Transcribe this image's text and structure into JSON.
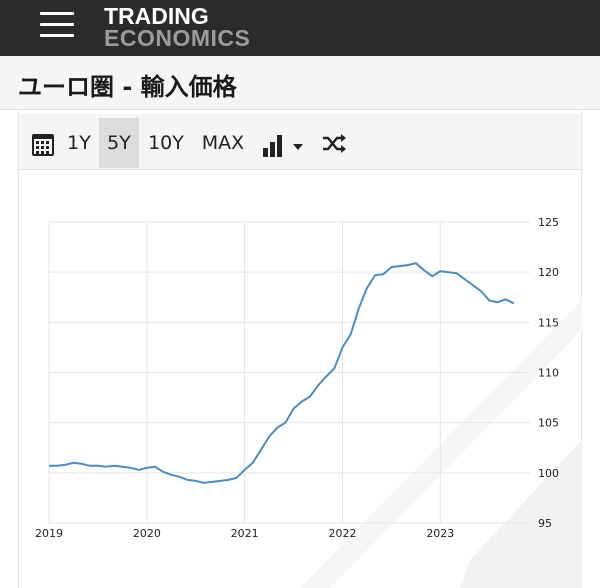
{
  "header": {
    "logo_line1": "TRADING",
    "logo_line2": "ECONOMICS",
    "menu_icon": "hamburger-icon",
    "bg_color": "#2b2b2b"
  },
  "page": {
    "title": "ユーロ圏 - 輸入価格"
  },
  "toolbar": {
    "calendar_icon": "calendar-icon",
    "ranges": [
      "1Y",
      "5Y",
      "10Y",
      "MAX"
    ],
    "selected_range": "5Y",
    "chart_type_icon": "bar-chart-icon",
    "dropdown_icon": "caret-down-icon",
    "compare_icon": "shuffle-icon"
  },
  "chart_data": {
    "type": "line",
    "title": "",
    "xlabel": "",
    "ylabel": "",
    "color": "#4a8cc4",
    "x_ticks": [
      "2019",
      "2020",
      "2021",
      "2022",
      "2023"
    ],
    "y_ticks": [
      "125",
      "120",
      "115",
      "110",
      "105",
      "100",
      "95"
    ],
    "ylim": [
      95,
      125
    ],
    "xlim": [
      "2019-01",
      "2023-12"
    ],
    "y_axis_position": "right",
    "grid": true,
    "x": [
      "2019-01",
      "2019-02",
      "2019-03",
      "2019-04",
      "2019-05",
      "2019-06",
      "2019-07",
      "2019-08",
      "2019-09",
      "2019-10",
      "2019-11",
      "2019-12",
      "2020-01",
      "2020-02",
      "2020-03",
      "2020-04",
      "2020-05",
      "2020-06",
      "2020-07",
      "2020-08",
      "2020-09",
      "2020-10",
      "2020-11",
      "2020-12",
      "2021-01",
      "2021-02",
      "2021-03",
      "2021-04",
      "2021-05",
      "2021-06",
      "2021-07",
      "2021-08",
      "2021-09",
      "2021-10",
      "2021-11",
      "2021-12",
      "2022-01",
      "2022-02",
      "2022-03",
      "2022-04",
      "2022-05",
      "2022-06",
      "2022-07",
      "2022-08",
      "2022-09",
      "2022-10",
      "2022-11",
      "2022-12",
      "2023-01",
      "2023-02",
      "2023-03",
      "2023-04",
      "2023-05",
      "2023-06",
      "2023-07",
      "2023-08",
      "2023-09",
      "2023-10"
    ],
    "values": [
      100.7,
      100.7,
      100.8,
      101.0,
      100.9,
      100.7,
      100.7,
      100.6,
      100.7,
      100.6,
      100.5,
      100.3,
      100.5,
      100.6,
      100.1,
      99.8,
      99.6,
      99.3,
      99.2,
      99.0,
      99.1,
      99.2,
      99.3,
      99.5,
      100.3,
      101.0,
      102.3,
      103.6,
      104.5,
      105.0,
      106.4,
      107.1,
      107.6,
      108.7,
      109.6,
      110.4,
      112.5,
      113.8,
      116.4,
      118.4,
      119.7,
      119.8,
      120.5,
      120.6,
      120.7,
      120.9,
      120.2,
      119.6,
      120.1,
      120.0,
      119.9,
      119.3,
      118.7,
      118.1,
      117.2,
      117.0,
      117.3,
      116.9
    ]
  }
}
